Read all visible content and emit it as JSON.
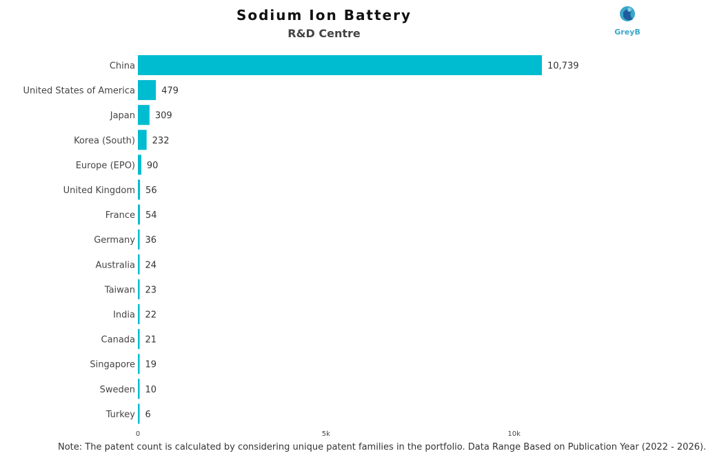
{
  "chart_data": {
    "type": "bar",
    "orientation": "horizontal",
    "title": "Sodium Ion Battery",
    "subtitle": "R&D Centre",
    "categories": [
      "China",
      "United States of America",
      "Japan",
      "Korea (South)",
      "Europe (EPO)",
      "United Kingdom",
      "France",
      "Germany",
      "Australia",
      "Taiwan",
      "India",
      "Canada",
      "Singapore",
      "Sweden",
      "Turkey"
    ],
    "values": [
      10739,
      479,
      309,
      232,
      90,
      56,
      54,
      36,
      24,
      23,
      22,
      21,
      19,
      10,
      6
    ],
    "value_labels": [
      "10,739",
      "479",
      "309",
      "232",
      "90",
      "56",
      "54",
      "36",
      "24",
      "23",
      "22",
      "21",
      "19",
      "10",
      "6"
    ],
    "xlim": [
      0,
      10739
    ],
    "x_ticks": [
      0,
      5000,
      10000
    ],
    "x_tick_labels": [
      "0",
      "5k",
      "10k"
    ],
    "bar_color": "#00bcd0",
    "grid": false,
    "legend": "none"
  },
  "logo": {
    "text": "GreyB",
    "color": "#3aa7c9"
  },
  "note": "Note: The patent count is calculated by considering unique patent families in the portfolio. Data Range Based on Publication Year (2022 - 2026)."
}
